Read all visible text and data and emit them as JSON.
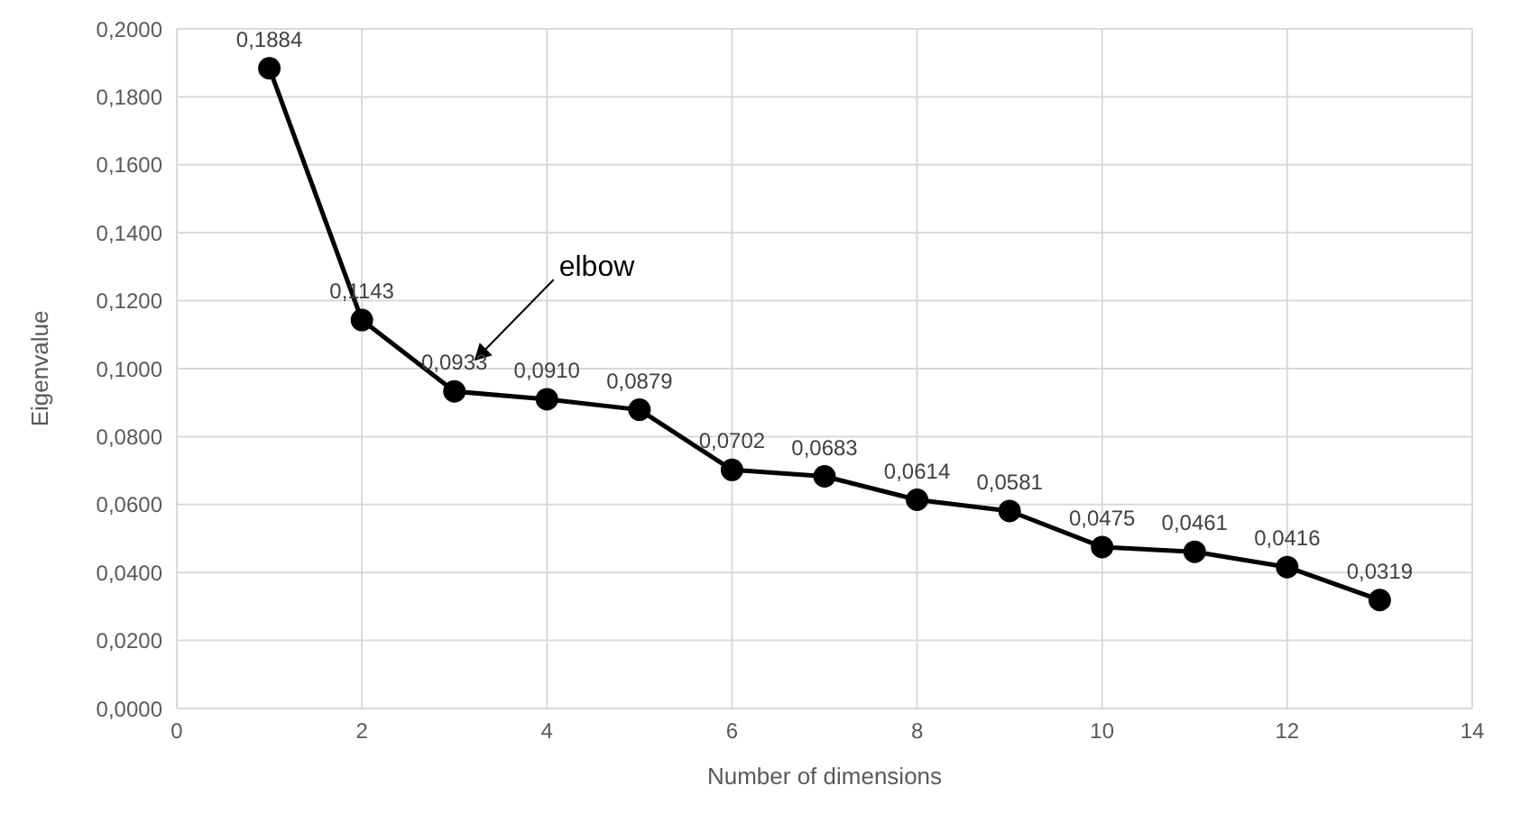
{
  "chart_data": {
    "type": "line",
    "xlabel": "Number of dimensions",
    "ylabel": "Eigenvalue",
    "x": [
      1,
      2,
      3,
      4,
      5,
      6,
      7,
      8,
      9,
      10,
      11,
      12,
      13
    ],
    "series": [
      {
        "color": "#000000",
        "values": [
          0.1884,
          0.1143,
          0.0933,
          0.091,
          0.0879,
          0.0702,
          0.0683,
          0.0614,
          0.0581,
          0.0475,
          0.0461,
          0.0416,
          0.0319
        ],
        "value_labels": [
          "0,1884",
          "0,1143",
          "0,0933",
          "0,0910",
          "0,0879",
          "0,0702",
          "0,0683",
          "0,0614",
          "0,0581",
          "0,0475",
          "0,0461",
          "0,0416",
          "0,0319"
        ]
      }
    ],
    "xlim": [
      0,
      14
    ],
    "xticks": [
      0,
      2,
      4,
      6,
      8,
      10,
      12,
      14
    ],
    "ylim": [
      0,
      0.2
    ],
    "yticks": [
      {
        "value": 0,
        "label": "0,0000"
      },
      {
        "value": 0.02,
        "label": "0,0200"
      },
      {
        "value": 0.04,
        "label": "0,0400"
      },
      {
        "value": 0.06,
        "label": "0,0600"
      },
      {
        "value": 0.08,
        "label": "0,0800"
      },
      {
        "value": 0.1,
        "label": "0,1000"
      },
      {
        "value": 0.12,
        "label": "0,1200"
      },
      {
        "value": 0.14,
        "label": "0,1400"
      },
      {
        "value": 0.16,
        "label": "0,1600"
      },
      {
        "value": 0.18,
        "label": "0,1800"
      },
      {
        "value": 0.2,
        "label": "0,2000"
      }
    ],
    "annotations": [
      "elbow"
    ],
    "grid": true,
    "legend": false,
    "marker": "circle",
    "line_style": "solid"
  }
}
